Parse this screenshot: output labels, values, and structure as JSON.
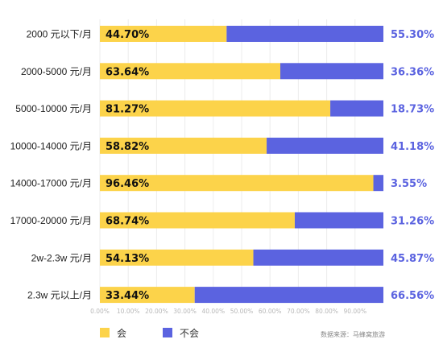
{
  "chart_data": {
    "type": "bar",
    "orientation": "horizontal",
    "stacked": true,
    "categories": [
      "2000 元以下/月",
      "2000-5000 元/月",
      "5000-10000 元/月",
      "10000-14000 元/月",
      "14000-17000 元/月",
      "17000-20000 元/月",
      "2w-2.3w 元/月",
      "2.3w 元以上/月"
    ],
    "series": [
      {
        "name": "会",
        "color": "#fcd34a",
        "values": [
          44.7,
          63.64,
          81.27,
          58.82,
          96.46,
          68.74,
          54.13,
          33.44
        ],
        "labels": [
          "44.70%",
          "63.64%",
          "81.27%",
          "58.82%",
          "96.46%",
          "68.74%",
          "54.13%",
          "33.44%"
        ]
      },
      {
        "name": "不会",
        "color": "#5b63e0",
        "values": [
          55.3,
          36.36,
          18.73,
          41.18,
          3.55,
          31.26,
          45.87,
          66.56
        ],
        "labels": [
          "55.30%",
          "36.36%",
          "18.73%",
          "41.18%",
          "3.55%",
          "31.26%",
          "45.87%",
          "66.56%"
        ]
      }
    ],
    "xticks": [
      "0.00%",
      "10.00%",
      "20.00%",
      "30.00%",
      "40.00%",
      "50.00%",
      "60.00%",
      "70.00%",
      "80.00%",
      "90.00%"
    ],
    "xlim": [
      0,
      100
    ],
    "grid": true,
    "legend_position": "bottom-left",
    "source": "数据来源：马蜂窝旅游"
  }
}
